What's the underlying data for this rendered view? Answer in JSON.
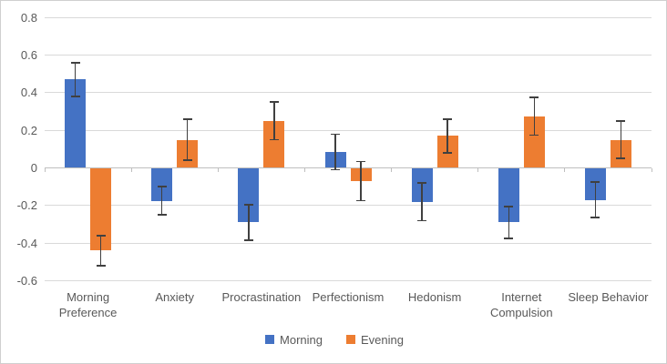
{
  "chart_data": {
    "type": "bar",
    "title": "",
    "categories": [
      "Morning Preference",
      "Anxiety",
      "Procrastination",
      "Perfectionism",
      "Hedonism",
      "Internet Compulsion",
      "Sleep Behavior"
    ],
    "series": [
      {
        "name": "Morning",
        "color": "#4472C4",
        "values": [
          0.47,
          -0.175,
          -0.29,
          0.085,
          -0.18,
          -0.29,
          -0.17
        ],
        "errors": [
          0.09,
          0.075,
          0.095,
          0.095,
          0.1,
          0.085,
          0.095
        ]
      },
      {
        "name": "Evening",
        "color": "#ED7D31",
        "values": [
          -0.44,
          0.15,
          0.25,
          -0.07,
          0.17,
          0.275,
          0.15
        ],
        "errors": [
          0.08,
          0.11,
          0.1,
          0.105,
          0.09,
          0.1,
          0.1
        ]
      }
    ],
    "xlabel": "",
    "ylabel": "",
    "ylim": [
      -0.6,
      0.8
    ],
    "y_ticks": [
      0.8,
      0.6,
      0.4,
      0.2,
      0,
      -0.2,
      -0.4,
      -0.6
    ],
    "y_tick_labels": [
      "0.8",
      "0.6",
      "0.4",
      "0.2",
      "0",
      "-0.2",
      "-0.4",
      "-0.6"
    ],
    "grid": true,
    "error_bars": true,
    "legend_position": "bottom"
  },
  "legend": {
    "items": [
      {
        "label": "Morning",
        "color": "#4472C4"
      },
      {
        "label": "Evening",
        "color": "#ED7D31"
      }
    ]
  },
  "colors": {
    "morning": "#4472C4",
    "evening": "#ED7D31",
    "gridline": "#d9d9d9",
    "axis_line": "#bfbfbf",
    "error_bar": "#404040",
    "text": "#595959",
    "border": "#cfcfcf"
  }
}
